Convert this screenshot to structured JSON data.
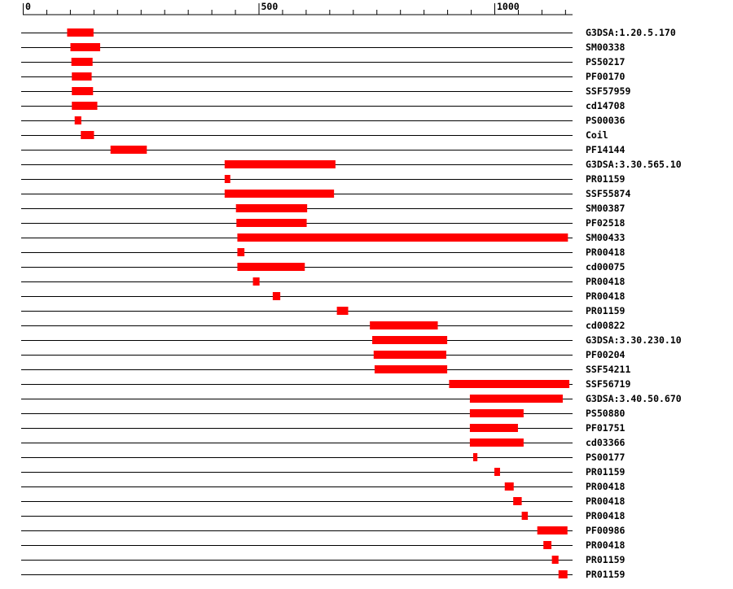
{
  "chart_data": {
    "type": "bar",
    "title": "",
    "xlabel": "",
    "ylabel": "",
    "xlim": [
      0,
      1180
    ],
    "x_ticks": [
      0,
      500,
      1000
    ],
    "x_tick_labels": [
      "0",
      "500",
      "1000"
    ],
    "minor_tick_step": 50,
    "bar_color": "#ff0000",
    "line_color": "#000000",
    "grid": false,
    "legend": "none",
    "rows": [
      {
        "label": "G3DSA:1.20.5.170",
        "start": 94,
        "end": 150
      },
      {
        "label": "SM00338",
        "start": 101,
        "end": 164
      },
      {
        "label": "PS50217",
        "start": 103,
        "end": 148
      },
      {
        "label": "PF00170",
        "start": 104,
        "end": 146
      },
      {
        "label": "SSF57959",
        "start": 104,
        "end": 149
      },
      {
        "label": "cd14708",
        "start": 104,
        "end": 158
      },
      {
        "label": "PS00036",
        "start": 110,
        "end": 124
      },
      {
        "label": "Coil",
        "start": 123,
        "end": 151
      },
      {
        "label": "PF14144",
        "start": 186,
        "end": 263
      },
      {
        "label": "G3DSA:3.30.565.10",
        "start": 428,
        "end": 663
      },
      {
        "label": "PR01159",
        "start": 428,
        "end": 440
      },
      {
        "label": "SSF55874",
        "start": 428,
        "end": 660
      },
      {
        "label": "SM00387",
        "start": 452,
        "end": 603
      },
      {
        "label": "PF02518",
        "start": 453,
        "end": 602
      },
      {
        "label": "SM00433",
        "start": 455,
        "end": 1156
      },
      {
        "label": "PR00418",
        "start": 455,
        "end": 470
      },
      {
        "label": "cd00075",
        "start": 455,
        "end": 598
      },
      {
        "label": "PR00418",
        "start": 488,
        "end": 502
      },
      {
        "label": "PR00418",
        "start": 530,
        "end": 546
      },
      {
        "label": "PR01159",
        "start": 666,
        "end": 690
      },
      {
        "label": "cd00822",
        "start": 736,
        "end": 880
      },
      {
        "label": "G3DSA:3.30.230.10",
        "start": 741,
        "end": 900
      },
      {
        "label": "PF00204",
        "start": 744,
        "end": 898
      },
      {
        "label": "SSF54211",
        "start": 746,
        "end": 900
      },
      {
        "label": "SSF56719",
        "start": 904,
        "end": 1159
      },
      {
        "label": "G3DSA:3.40.50.670",
        "start": 948,
        "end": 1145
      },
      {
        "label": "PS50880",
        "start": 948,
        "end": 1062
      },
      {
        "label": "PF01751",
        "start": 948,
        "end": 1050
      },
      {
        "label": "cd03366",
        "start": 948,
        "end": 1062
      },
      {
        "label": "PS00177",
        "start": 955,
        "end": 964
      },
      {
        "label": "PR01159",
        "start": 1000,
        "end": 1012
      },
      {
        "label": "PR00418",
        "start": 1022,
        "end": 1041
      },
      {
        "label": "PR00418",
        "start": 1040,
        "end": 1058
      },
      {
        "label": "PR00418",
        "start": 1058,
        "end": 1071
      },
      {
        "label": "PF00986",
        "start": 1091,
        "end": 1155
      },
      {
        "label": "PR00418",
        "start": 1104,
        "end": 1121
      },
      {
        "label": "PR01159",
        "start": 1122,
        "end": 1136
      },
      {
        "label": "PR01159",
        "start": 1136,
        "end": 1155
      }
    ]
  }
}
